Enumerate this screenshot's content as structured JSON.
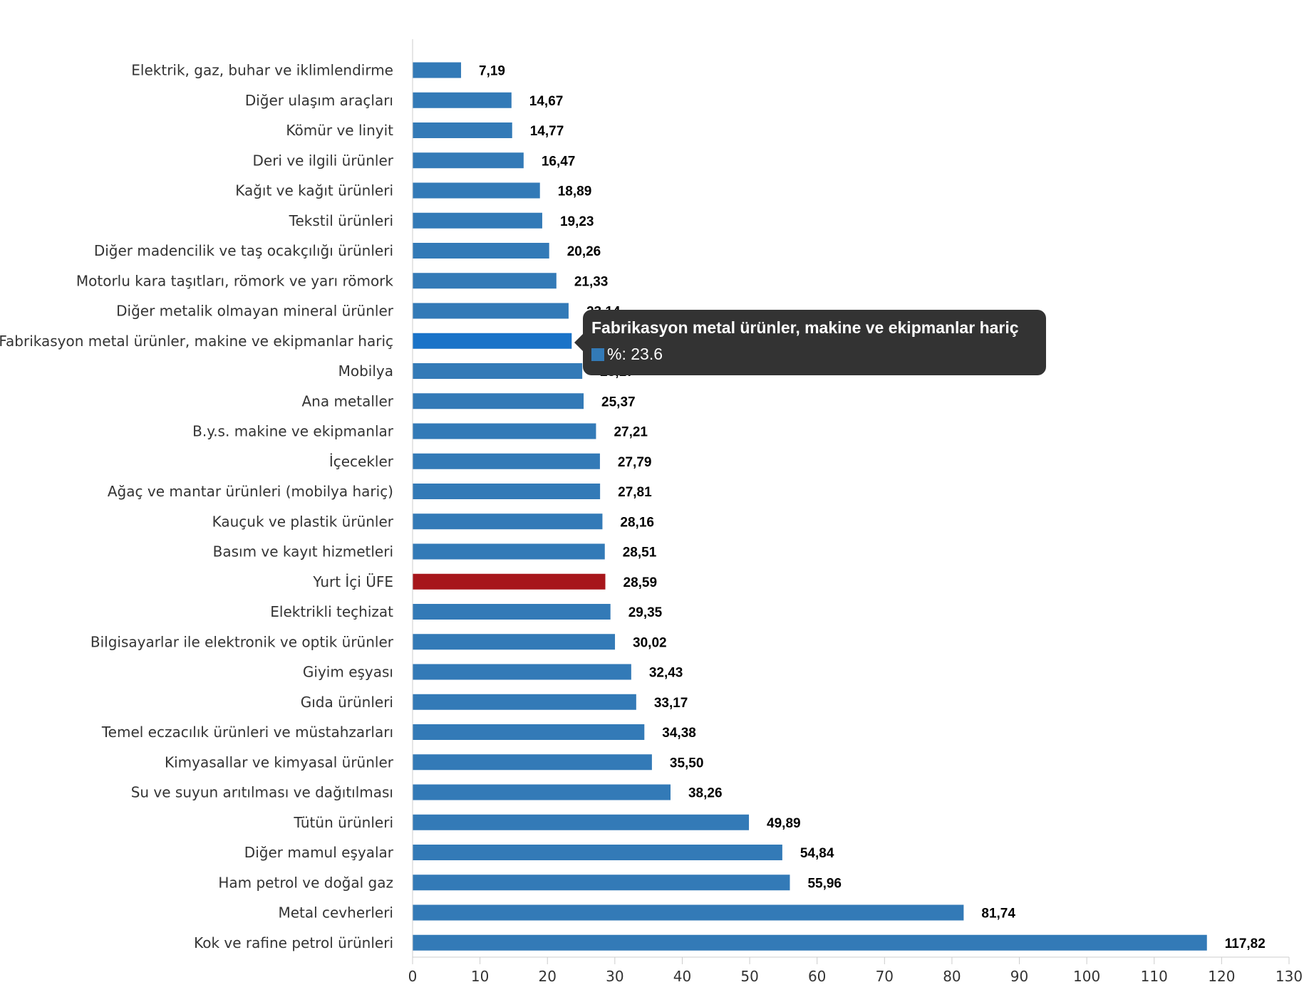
{
  "chart_data": {
    "type": "bar",
    "orientation": "horizontal",
    "categories": [
      "Elektrik, gaz, buhar ve iklimlendirme",
      "Diğer ulaşım araçları",
      "Kömür ve linyit",
      "Deri ve ilgili ürünler",
      "Kağıt ve kağıt ürünleri",
      "Tekstil ürünleri",
      "Diğer madencilik ve taş ocakçılığı ürünleri",
      "Motorlu kara taşıtları, römork ve yarı römork",
      "Diğer metalik olmayan mineral ürünler",
      "Fabrikasyon metal ürünler, makine ve ekipmanlar hariç",
      "Mobilya",
      "Ana metaller",
      "B.y.s. makine ve ekipmanlar",
      "İçecekler",
      "Ağaç ve mantar ürünleri (mobilya hariç)",
      "Kauçuk ve plastik ürünler",
      "Basım ve kayıt hizmetleri",
      "Yurt İçi ÜFE",
      "Elektrikli teçhizat",
      "Bilgisayarlar ile elektronik ve optik ürünler",
      "Giyim eşyası",
      "Gıda ürünleri",
      "Temel eczacılık ürünleri ve müstahzarları",
      "Kimyasallar ve kimyasal ürünler",
      "Su ve suyun arıtılması ve dağıtılması",
      "Tütün ürünleri",
      "Diğer mamul eşyalar",
      "Ham petrol ve doğal gaz",
      "Metal cevherleri",
      "Kok ve rafine petrol ürünleri"
    ],
    "series": [
      {
        "name": "%",
        "values": [
          7.19,
          14.67,
          14.77,
          16.47,
          18.89,
          19.23,
          20.26,
          21.33,
          23.14,
          23.6,
          25.17,
          25.37,
          27.21,
          27.79,
          27.81,
          28.16,
          28.51,
          28.59,
          29.35,
          30.02,
          32.43,
          33.17,
          34.38,
          35.5,
          38.26,
          49.89,
          54.84,
          55.96,
          81.74,
          117.82
        ]
      }
    ],
    "value_labels": [
      "7,19",
      "14,67",
      "14,77",
      "16,47",
      "18,89",
      "19,23",
      "20,26",
      "21,33",
      "23,14",
      "23,60",
      "25,17",
      "25,37",
      "27,21",
      "27,79",
      "27,81",
      "28,16",
      "28,51",
      "28,59",
      "29,35",
      "30,02",
      "32,43",
      "33,17",
      "34,38",
      "35,50",
      "38,26",
      "49,89",
      "54,84",
      "55,96",
      "81,74",
      "117,82"
    ],
    "xlim": [
      0,
      130
    ],
    "x_ticks": [
      0,
      10,
      20,
      30,
      40,
      50,
      60,
      70,
      80,
      90,
      100,
      110,
      120,
      130
    ],
    "highlight_category": "Yurt İçi ÜFE",
    "hover_category": "Fabrikasyon metal ürünler, makine ve ekipmanlar hariç",
    "grid": false,
    "legend": "none",
    "colors": {
      "bar": "#337ab7",
      "highlight": "#a7161b",
      "hover": "#1a73c8"
    }
  },
  "tooltip": {
    "title": "Fabrikasyon metal ürünler, makine ve ekipmanlar hariç",
    "series_label": "%",
    "value_text": "%: 23.6",
    "color": "#337ab7"
  }
}
